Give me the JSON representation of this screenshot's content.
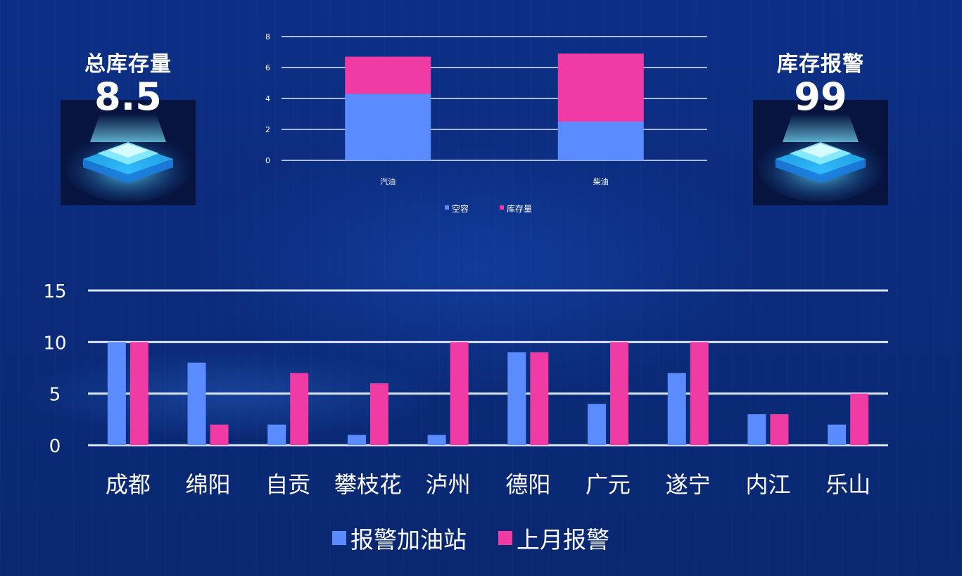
{
  "colors": {
    "series_a": "#5b8cff",
    "series_b": "#f03ba4",
    "grid": "#c8d6ff",
    "text": "#ffffff"
  },
  "kpi_left": {
    "title": "总库存量",
    "value": "8.5",
    "icon": "platform-hologram-icon"
  },
  "kpi_right": {
    "title": "库存报警",
    "value": "99",
    "icon": "platform-hologram-icon"
  },
  "chart_data": [
    {
      "type": "bar",
      "stacked": true,
      "categories": [
        "汽油",
        "柴油"
      ],
      "series": [
        {
          "name": "空容",
          "values": [
            4.3,
            2.5
          ]
        },
        {
          "name": "库存量",
          "values": [
            2.4,
            4.4
          ]
        }
      ],
      "y_ticks": [
        0,
        2,
        4,
        6,
        8
      ],
      "ylim": [
        0,
        8
      ],
      "grid": true,
      "legend": "bottom-center"
    },
    {
      "type": "bar",
      "categories": [
        "成都",
        "绵阳",
        "自贡",
        "攀枝花",
        "泸州",
        "德阳",
        "广元",
        "遂宁",
        "内江",
        "乐山"
      ],
      "series": [
        {
          "name": "报警加油站",
          "values": [
            10,
            8,
            2,
            1,
            1,
            9,
            4,
            7,
            3,
            2
          ]
        },
        {
          "name": "上月报警",
          "values": [
            10,
            2,
            7,
            6,
            10,
            9,
            10,
            10,
            3,
            5
          ]
        }
      ],
      "y_ticks": [
        0,
        5,
        10,
        15
      ],
      "ylim": [
        0,
        15
      ],
      "grid": true,
      "legend": "bottom-center"
    }
  ]
}
